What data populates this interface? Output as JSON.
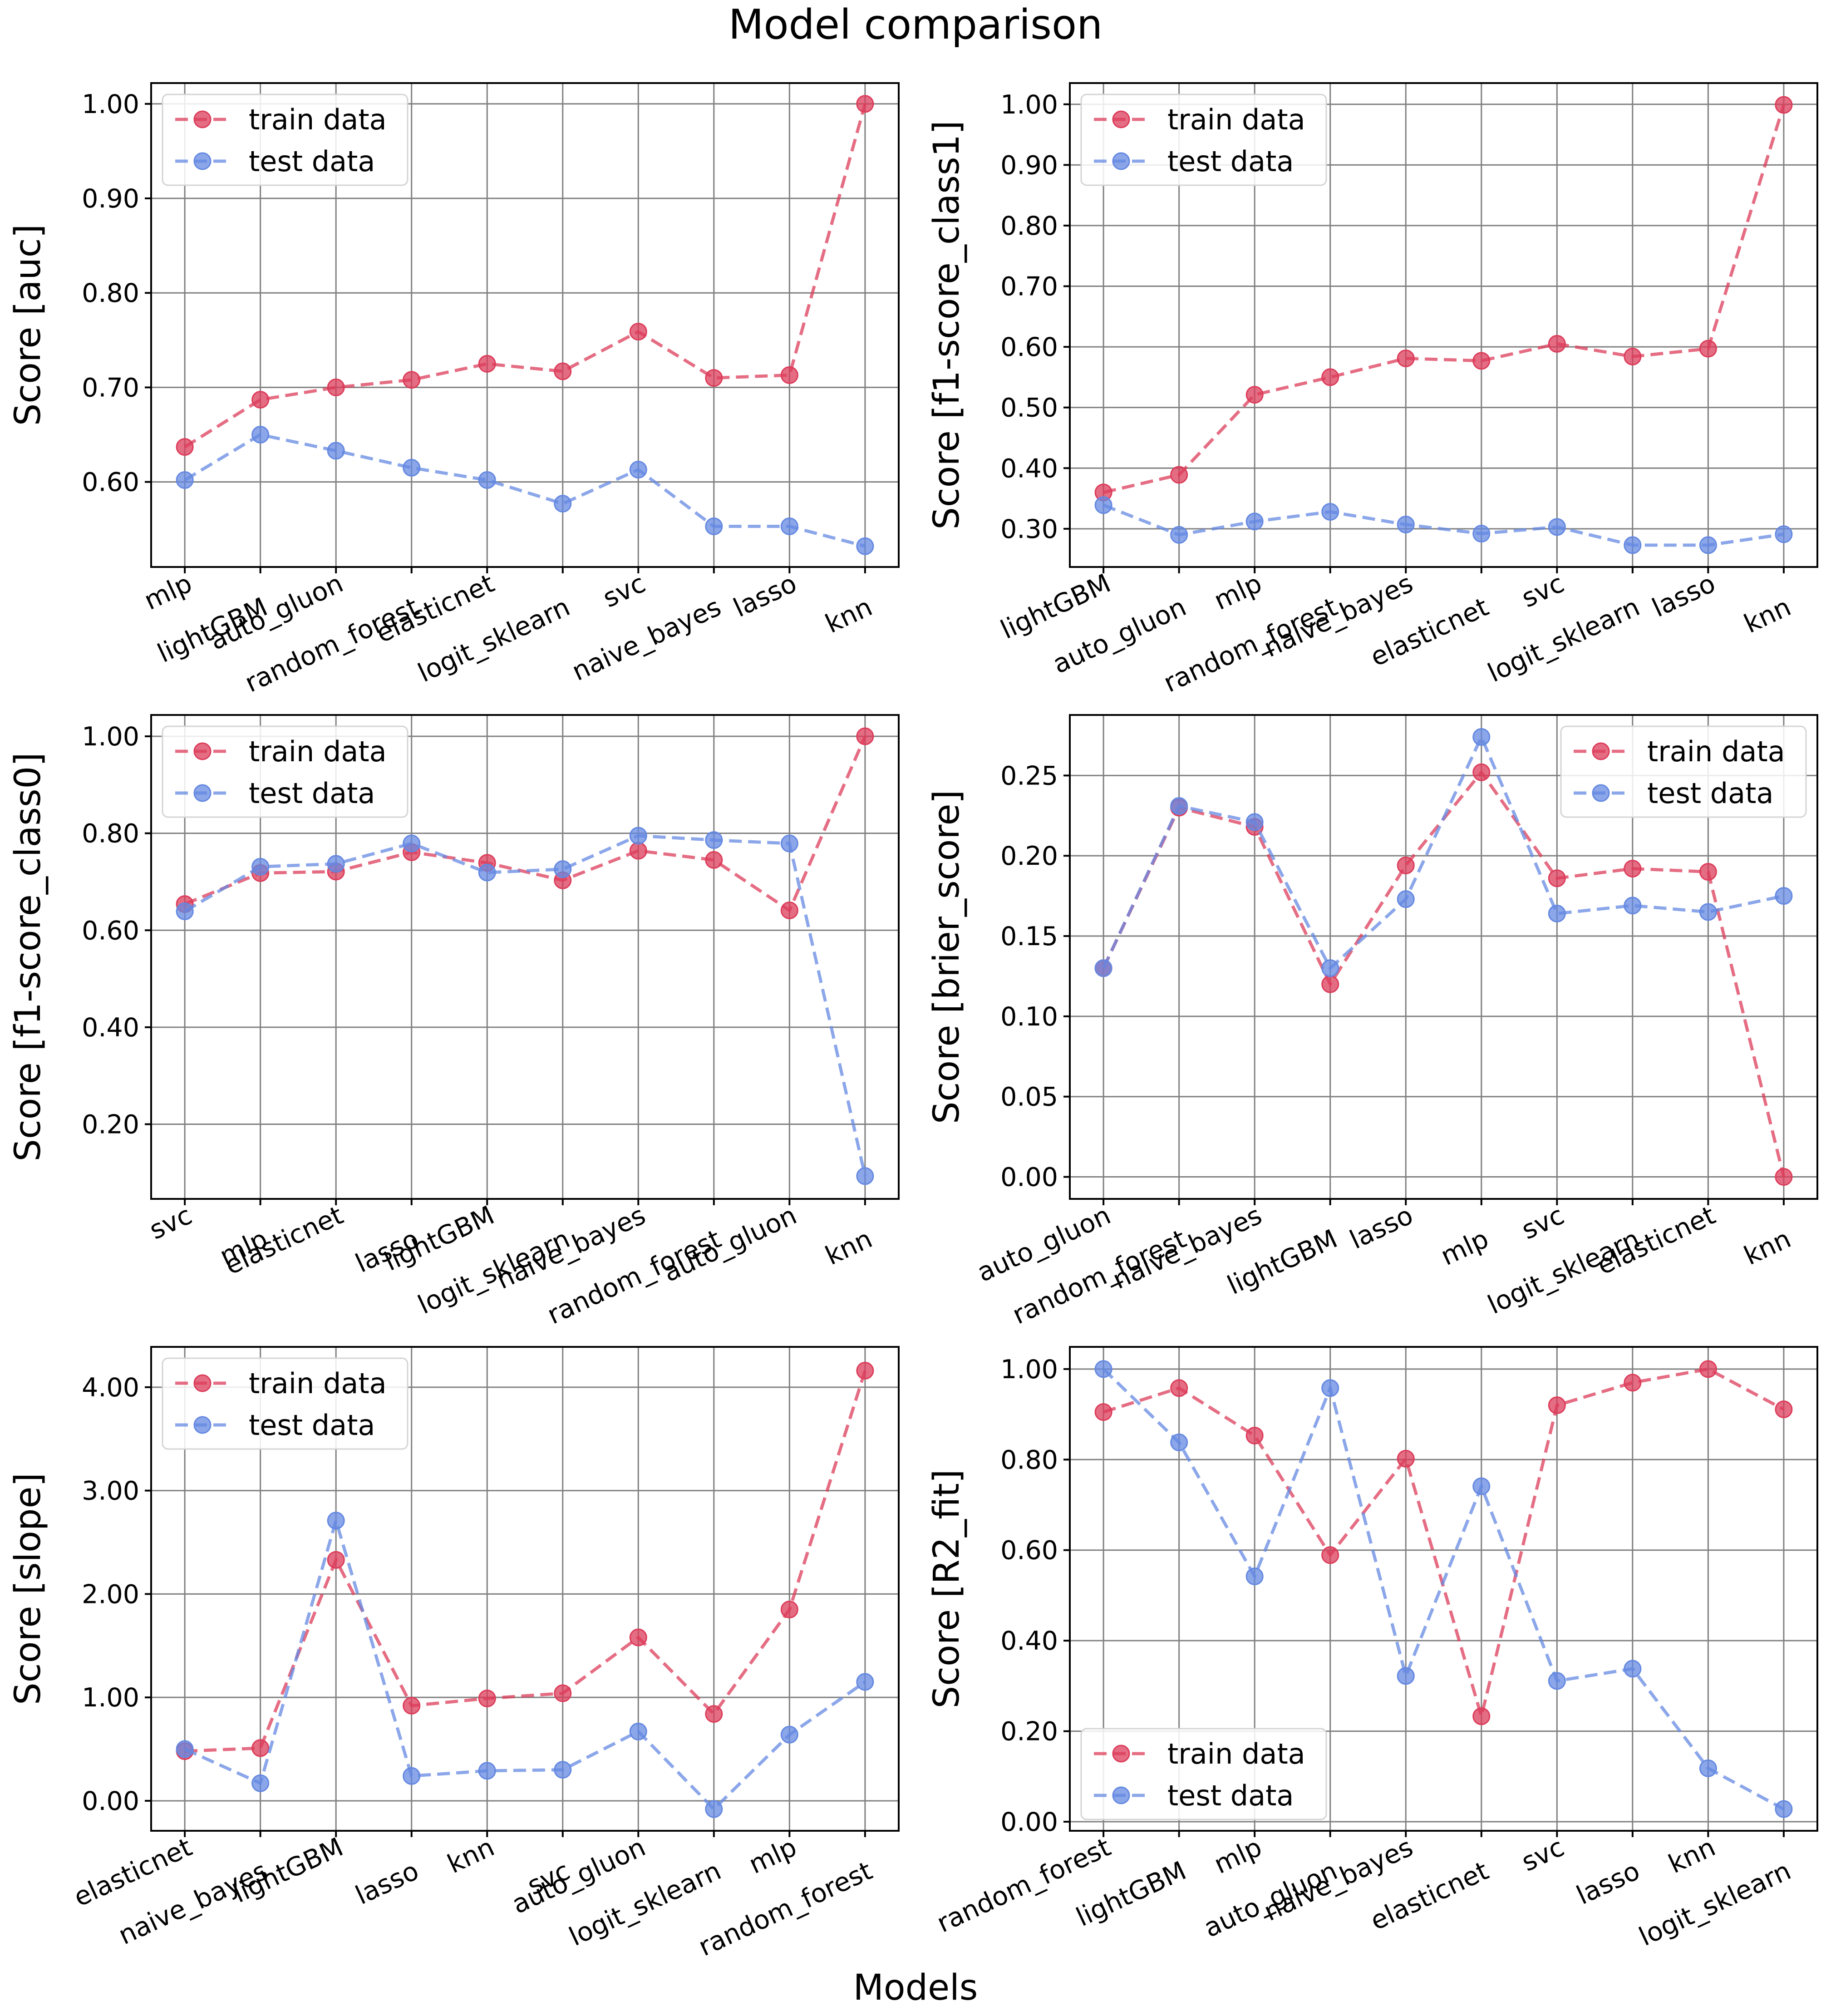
{
  "figure": {
    "suptitle": "Model comparison",
    "supxlabel": "Models"
  },
  "colors": {
    "train": "#dc3c5a",
    "test": "#6488e1"
  },
  "chart_data": [
    {
      "type": "line",
      "ylabel": "Score [auc]",
      "categories": [
        "mlp",
        "lightGBM",
        "auto_gluon",
        "random_forest",
        "elasticnet",
        "logit_sklearn",
        "svc",
        "naive_bayes",
        "lasso",
        "knn"
      ],
      "series": [
        {
          "name": "train data",
          "values": [
            0.637,
            0.687,
            0.7,
            0.708,
            0.725,
            0.717,
            0.759,
            0.71,
            0.713,
            1.0
          ]
        },
        {
          "name": "test data",
          "values": [
            0.602,
            0.65,
            0.633,
            0.615,
            0.602,
            0.577,
            0.613,
            0.553,
            0.553,
            0.532
          ]
        }
      ],
      "ylim": [
        0.51,
        1.022
      ],
      "yticks": [
        0.6,
        0.7,
        0.8,
        0.9,
        1.0
      ],
      "ytick_labels": [
        "0.60",
        "0.70",
        "0.80",
        "0.90",
        "1.00"
      ],
      "legend": "top-left",
      "grid": true
    },
    {
      "type": "line",
      "ylabel": "Score [f1-score_class1]",
      "categories": [
        "lightGBM",
        "auto_gluon",
        "mlp",
        "random_forest",
        "naive_bayes",
        "elasticnet",
        "svc",
        "logit_sklearn",
        "lasso",
        "knn"
      ],
      "series": [
        {
          "name": "train data",
          "values": [
            0.36,
            0.389,
            0.521,
            0.55,
            0.581,
            0.577,
            0.605,
            0.584,
            0.597,
            0.999
          ]
        },
        {
          "name": "test data",
          "values": [
            0.339,
            0.29,
            0.312,
            0.328,
            0.307,
            0.292,
            0.303,
            0.273,
            0.273,
            0.291
          ]
        }
      ],
      "ylim": [
        0.237,
        1.035
      ],
      "yticks": [
        0.3,
        0.4,
        0.5,
        0.6,
        0.7,
        0.8,
        0.9,
        1.0
      ],
      "ytick_labels": [
        "0.30",
        "0.40",
        "0.50",
        "0.60",
        "0.70",
        "0.80",
        "0.90",
        "1.00"
      ],
      "legend": "top-left",
      "grid": true
    },
    {
      "type": "line",
      "ylabel": "Score [f1-score_class0]",
      "categories": [
        "svc",
        "mlp",
        "elasticnet",
        "lasso",
        "lightGBM",
        "logit_sklearn",
        "naive_bayes",
        "random_forest",
        "auto_gluon",
        "knn"
      ],
      "series": [
        {
          "name": "train data",
          "values": [
            0.654,
            0.718,
            0.721,
            0.761,
            0.739,
            0.703,
            0.764,
            0.745,
            0.641,
            1.0
          ]
        },
        {
          "name": "test data",
          "values": [
            0.639,
            0.731,
            0.737,
            0.779,
            0.719,
            0.726,
            0.795,
            0.786,
            0.779,
            0.093
          ]
        }
      ],
      "ylim": [
        0.046,
        1.044
      ],
      "yticks": [
        0.2,
        0.4,
        0.6,
        0.8,
        1.0
      ],
      "ytick_labels": [
        "0.20",
        "0.40",
        "0.60",
        "0.80",
        "1.00"
      ],
      "legend": "top-left",
      "grid": true
    },
    {
      "type": "line",
      "ylabel": "Score [brier_score]",
      "categories": [
        "auto_gluon",
        "random_forest",
        "naive_bayes",
        "lightGBM",
        "lasso",
        "mlp",
        "svc",
        "logit_sklearn",
        "elasticnet",
        "knn"
      ],
      "series": [
        {
          "name": "train data",
          "values": [
            0.13,
            0.23,
            0.218,
            0.12,
            0.194,
            0.252,
            0.186,
            0.192,
            0.19,
            0.0
          ]
        },
        {
          "name": "test data",
          "values": [
            0.13,
            0.231,
            0.221,
            0.13,
            0.173,
            0.274,
            0.164,
            0.169,
            0.165,
            0.175
          ]
        }
      ],
      "ylim": [
        -0.0137,
        0.2877
      ],
      "yticks": [
        0.0,
        0.05,
        0.1,
        0.15,
        0.2,
        0.25
      ],
      "ytick_labels": [
        "0.00",
        "0.05",
        "0.10",
        "0.15",
        "0.20",
        "0.25"
      ],
      "legend": "top-right",
      "grid": true
    },
    {
      "type": "line",
      "ylabel": "Score [slope]",
      "categories": [
        "elasticnet",
        "naive_bayes",
        "lightGBM",
        "lasso",
        "knn",
        "svc",
        "auto_gluon",
        "logit_sklearn",
        "mlp",
        "random_forest"
      ],
      "series": [
        {
          "name": "train data",
          "values": [
            0.48,
            0.51,
            2.33,
            0.92,
            0.99,
            1.04,
            1.58,
            0.84,
            1.85,
            4.16
          ]
        },
        {
          "name": "test data",
          "values": [
            0.5,
            0.17,
            2.71,
            0.24,
            0.29,
            0.3,
            0.67,
            -0.08,
            0.64,
            1.15
          ]
        }
      ],
      "ylim": [
        -0.29,
        4.39
      ],
      "yticks": [
        0,
        1,
        2,
        3,
        4
      ],
      "ytick_labels": [
        "0.00",
        "1.00",
        "2.00",
        "3.00",
        "4.00"
      ],
      "legend": "top-left",
      "grid": true
    },
    {
      "type": "line",
      "ylabel": "Score [R2_fit]",
      "categories": [
        "random_forest",
        "lightGBM",
        "mlp",
        "auto_gluon",
        "naive_bayes",
        "elasticnet",
        "svc",
        "lasso",
        "knn",
        "logit_sklearn"
      ],
      "series": [
        {
          "name": "train data",
          "values": [
            0.905,
            0.958,
            0.853,
            0.589,
            0.802,
            0.233,
            0.92,
            0.97,
            1.0,
            0.911
          ]
        },
        {
          "name": "test data",
          "values": [
            1.0,
            0.838,
            0.542,
            0.958,
            0.322,
            0.741,
            0.311,
            0.338,
            0.118,
            0.028
          ]
        }
      ],
      "ylim": [
        -0.02,
        1.049
      ],
      "yticks": [
        0.0,
        0.2,
        0.4,
        0.6,
        0.8,
        1.0
      ],
      "ytick_labels": [
        "0.00",
        "0.20",
        "0.40",
        "0.60",
        "0.80",
        "1.00"
      ],
      "legend": "bottom-left",
      "grid": true
    }
  ]
}
